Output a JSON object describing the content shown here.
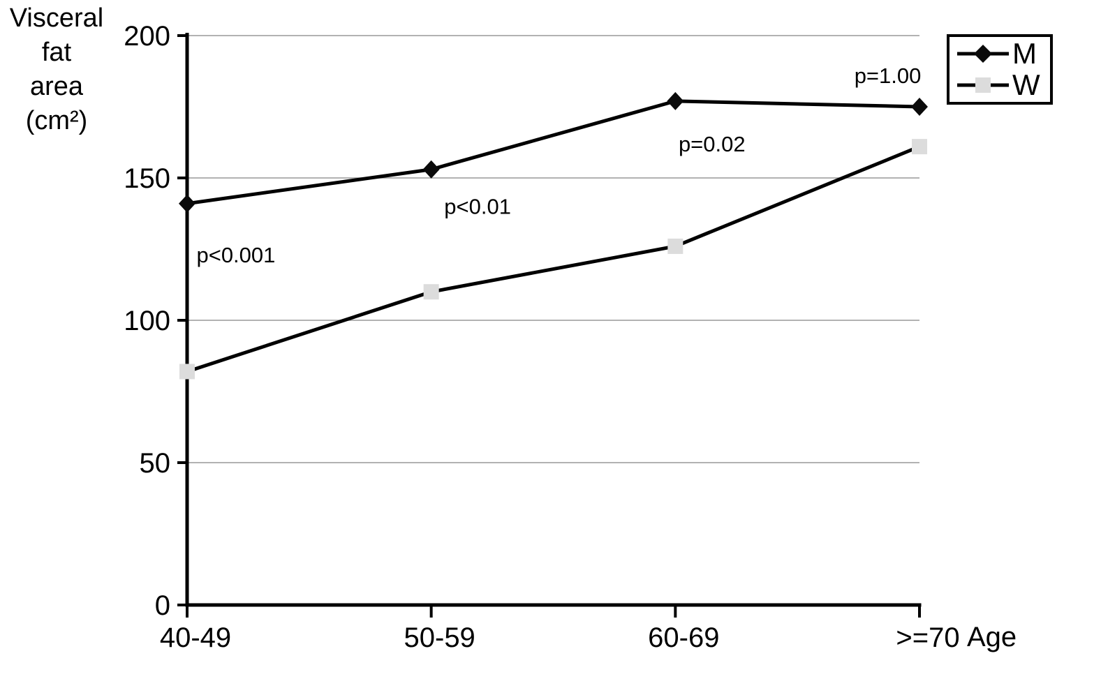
{
  "chart_data": {
    "type": "line",
    "ylabel": "Visceral fat area (cm²)",
    "ylabel_lines": [
      "Visceral",
      "fat",
      "area",
      "(cm²)"
    ],
    "xlabel": "Age",
    "categories": [
      "40-49",
      "50-59",
      "60-69",
      ">=70"
    ],
    "yticks": [
      0,
      50,
      100,
      150,
      200
    ],
    "ylim": [
      0,
      200
    ],
    "grid": true,
    "legend_position": "top-right",
    "series": [
      {
        "name": "M",
        "marker": "diamond",
        "line_color": "#000000",
        "marker_color": "#0a0a0a",
        "values": [
          141,
          153,
          177,
          175
        ]
      },
      {
        "name": "W",
        "marker": "square",
        "line_color": "#000000",
        "marker_color": "#dcdcdc",
        "values": [
          82,
          110,
          126,
          161
        ]
      }
    ],
    "annotations": [
      {
        "text": "p<0.001",
        "x_frac": 0.2,
        "y_value": 123
      },
      {
        "text": "p<0.01",
        "x_frac": 1.19,
        "y_value": 140
      },
      {
        "text": "p=0.02",
        "x_frac": 2.15,
        "y_value": 162
      },
      {
        "text": "p=1.00",
        "x_frac": 2.87,
        "y_value": 186
      }
    ],
    "colors": {
      "axis": "#000000",
      "gridline": "#999999",
      "text": "#000000",
      "w_marker_fill": "#dcdcdc"
    }
  }
}
